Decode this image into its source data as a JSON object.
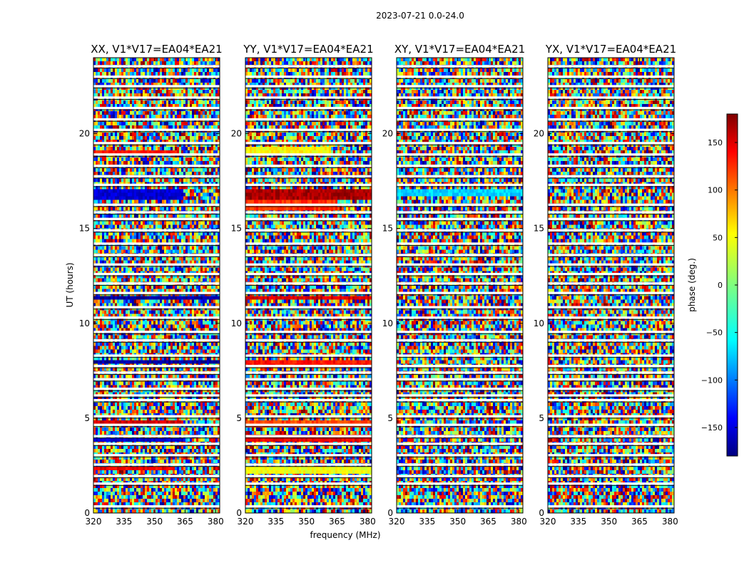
{
  "chart_data": {
    "type": "heatmap",
    "suptitle": "2023-07-21 0.0-24.0",
    "xlabel": "frequency (MHz)",
    "ylabel": "UT (hours)",
    "xlim": [
      320,
      382
    ],
    "ylim": [
      0,
      24
    ],
    "xticks": [
      320,
      335,
      350,
      365,
      380
    ],
    "yticks": [
      0,
      5,
      10,
      15,
      20
    ],
    "colorbar": {
      "label": "phase (deg.)",
      "range": [
        -180,
        180
      ],
      "ticks": [
        -150,
        -100,
        -50,
        0,
        50,
        100,
        150
      ],
      "tick_labels": [
        "−150",
        "−100",
        "−50",
        "0",
        "50",
        "100",
        "150"
      ],
      "colormap": "jet"
    },
    "colormap_stops": [
      "#00007f",
      "#0000ff",
      "#007fff",
      "#00ffff",
      "#7fff7f",
      "#ffff00",
      "#ff7f00",
      "#ff0000",
      "#7f0000"
    ],
    "flagged_hours": [
      0.35,
      1.55,
      1.95,
      2.55,
      3.05,
      3.65,
      4.05,
      4.65,
      5.1,
      5.95,
      6.2,
      6.55,
      7.05,
      7.4,
      7.75,
      8.3,
      9.1,
      9.55,
      10.3,
      10.85,
      11.6,
      12.1,
      12.6,
      13.1,
      13.6,
      14.2,
      14.9,
      15.5,
      15.85,
      16.25,
      17.3,
      17.75,
      18.3,
      18.9,
      19.5,
      20.2,
      20.75,
      21.35,
      21.9,
      22.5,
      23.0,
      23.55
    ],
    "panels": [
      {
        "title": "XX, V1*V17=EA04*EA21",
        "coherent_bands": [
          {
            "t0": 2.2,
            "t1": 2.4,
            "phase": 140,
            "f_end": 360
          },
          {
            "t0": 3.8,
            "t1": 4.0,
            "phase": -150,
            "f_end": 364
          },
          {
            "t0": 4.6,
            "t1": 4.8,
            "phase": 150,
            "f_end": 364
          },
          {
            "t0": 7.8,
            "t1": 8.0,
            "phase": -170,
            "f_end": 382
          },
          {
            "t0": 11.2,
            "t1": 11.4,
            "phase": -170,
            "f_end": 382
          },
          {
            "t0": 16.5,
            "t1": 17.1,
            "phase": -150,
            "f_end": 364
          },
          {
            "t0": 19.0,
            "t1": 19.2,
            "phase": 130,
            "f_end": 362
          }
        ]
      },
      {
        "title": "YY, V1*V17=EA04*EA21",
        "coherent_bands": [
          {
            "t0": 2.1,
            "t1": 2.5,
            "phase": 40,
            "f_end": 382
          },
          {
            "t0": 3.7,
            "t1": 4.1,
            "phase": 140,
            "f_end": 382
          },
          {
            "t0": 4.5,
            "t1": 4.9,
            "phase": 110,
            "f_end": 382
          },
          {
            "t0": 7.7,
            "t1": 8.1,
            "phase": 130,
            "f_end": 382
          },
          {
            "t0": 11.2,
            "t1": 11.5,
            "phase": 150,
            "f_end": 382
          },
          {
            "t0": 16.0,
            "t1": 16.5,
            "phase": 120,
            "f_end": 365
          },
          {
            "t0": 16.5,
            "t1": 17.1,
            "phase": 165,
            "f_end": 382
          },
          {
            "t0": 19.0,
            "t1": 19.3,
            "phase": 45,
            "f_end": 362
          }
        ]
      },
      {
        "title": "XY, V1*V17=EA04*EA21",
        "coherent_bands": [
          {
            "t0": 16.6,
            "t1": 17.0,
            "phase": -60,
            "f_end": 382
          }
        ]
      },
      {
        "title": "YX, V1*V17=EA04*EA21",
        "coherent_bands": []
      }
    ]
  }
}
